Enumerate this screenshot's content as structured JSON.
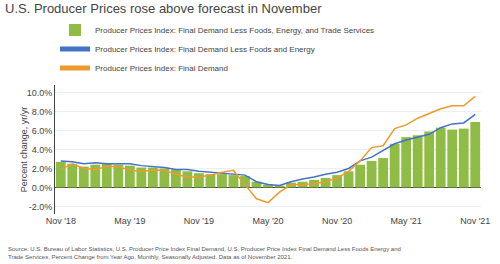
{
  "chart_data": {
    "type": "bar",
    "title": "U.S. Producer Prices rose above forecast in November",
    "ylabel": "Percent change, yr/yr",
    "annotations": [
      "Source: U.S. Bureau of Labor Statistics, U.S. Producer Price Index Final Demand, U.S. Producer Price Index Final Demand Less Foods Energy and\nTrade Services, Percent Change from Year Ago, Monthly, Seasonally Adjusted. Data as of November 2021."
    ],
    "categories": [
      "Nov '18",
      null,
      null,
      null,
      null,
      null,
      "May '19",
      null,
      null,
      null,
      null,
      null,
      "Nov '19",
      null,
      null,
      null,
      null,
      null,
      "May '20",
      null,
      null,
      null,
      null,
      null,
      "Nov '20",
      null,
      null,
      null,
      null,
      null,
      "May '21",
      null,
      null,
      null,
      null,
      null,
      "Nov '21"
    ],
    "series": [
      {
        "name": "Producer Prices Index: Final Demand Less Foods, Energy, and Trade Services",
        "type": "bar",
        "color": "#8fbc45",
        "values": [
          2.7,
          2.5,
          2.2,
          2.4,
          2.5,
          2.4,
          2.3,
          2.1,
          2.1,
          2.0,
          1.9,
          1.7,
          1.5,
          1.4,
          1.4,
          1.3,
          1.2,
          0.6,
          0.3,
          0.2,
          0.5,
          0.6,
          0.8,
          1.0,
          1.3,
          1.7,
          2.4,
          2.8,
          3.1,
          4.6,
          5.3,
          5.5,
          5.9,
          6.3,
          6.1,
          6.2,
          6.9
        ]
      },
      {
        "name": "Producer Prices Index: Final Demand Less Foods and Energy",
        "type": "line",
        "color": "#4472c4",
        "values": [
          2.8,
          2.7,
          2.5,
          2.6,
          2.5,
          2.5,
          2.5,
          2.3,
          2.2,
          2.1,
          1.9,
          1.9,
          1.7,
          1.6,
          1.5,
          1.4,
          1.3,
          0.6,
          0.3,
          0.2,
          0.6,
          0.9,
          1.1,
          1.4,
          1.6,
          2.0,
          2.8,
          3.2,
          3.9,
          4.6,
          5.0,
          5.3,
          5.6,
          6.3,
          6.7,
          6.8,
          7.7
        ]
      },
      {
        "name": "Producer Prices Index: Final Demand",
        "type": "line",
        "color": "#ed9b2f",
        "values": [
          1.9,
          2.5,
          2.0,
          1.9,
          2.2,
          2.2,
          1.8,
          1.7,
          1.8,
          1.8,
          1.4,
          1.1,
          1.1,
          1.3,
          1.6,
          1.8,
          0.3,
          -1.2,
          -1.6,
          -0.5,
          0.3,
          0.3,
          0.4,
          0.6,
          1.0,
          1.7,
          2.8,
          4.2,
          4.4,
          6.2,
          6.6,
          7.3,
          7.8,
          8.3,
          8.6,
          8.6,
          9.6
        ]
      }
    ],
    "ylim": [
      -2.8,
      10.8
    ],
    "yticks": [
      {
        "value": -2.0,
        "label": "-2.0%"
      },
      {
        "value": 0.0,
        "label": "0.0%"
      },
      {
        "value": 2.0,
        "label": "2.0%"
      },
      {
        "value": 4.0,
        "label": "4.0%"
      },
      {
        "value": 6.0,
        "label": "6.0%"
      },
      {
        "value": 8.0,
        "label": "8.0%"
      },
      {
        "value": 10.0,
        "label": "10.0%"
      }
    ],
    "grid": true,
    "legend": "top"
  }
}
